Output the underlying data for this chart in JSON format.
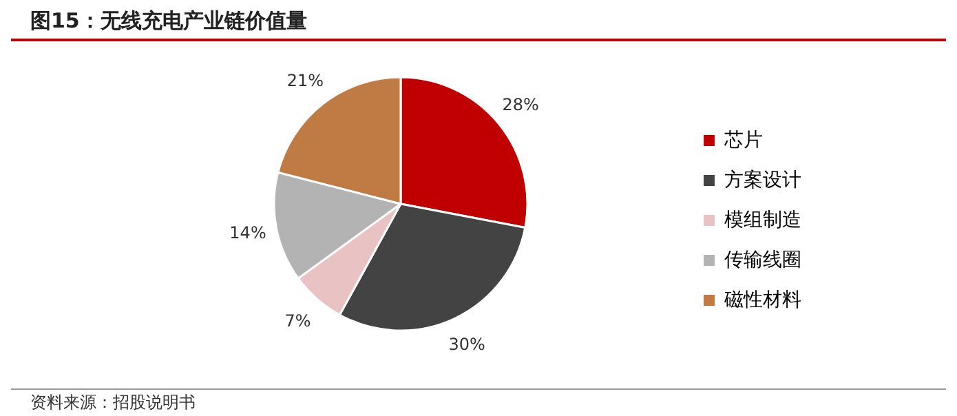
{
  "chart_data": {
    "type": "pie",
    "title": "图15：无线充电产业链价值量",
    "categories": [
      "芯片",
      "方案设计",
      "模组制造",
      "传输线圈",
      "磁性材料"
    ],
    "values": [
      28,
      30,
      7,
      14,
      21
    ],
    "value_labels": [
      "28%",
      "30%",
      "7%",
      "14%",
      "21%"
    ],
    "colors": [
      "#c00000",
      "#434343",
      "#e9c3c4",
      "#b3b3b3",
      "#c07a44"
    ],
    "legend": "right",
    "annotations": [
      "资料来源：招股说明书"
    ]
  }
}
